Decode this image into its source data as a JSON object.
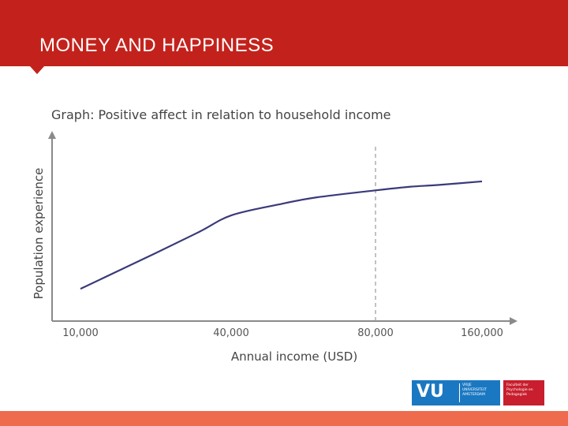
{
  "header": {
    "title": "MONEY AND HAPPINESS"
  },
  "chart_data": {
    "type": "line",
    "title": "Graph: Positive affect in relation to household income",
    "xlabel": "Annual income (USD)",
    "ylabel": "Population experience",
    "x_scale": "log",
    "x_ticks": [
      "10,000",
      "40,000",
      "80,000",
      "160,000"
    ],
    "x_tick_values": [
      10000,
      40000,
      80000,
      160000
    ],
    "xlim": [
      10000,
      200000
    ],
    "ylim": [
      0,
      1
    ],
    "series": [
      {
        "x": [
          10000,
          20000,
          30000,
          40000,
          50000,
          60000,
          80000,
          100000,
          120000,
          160000
        ],
        "values": [
          0.18,
          0.38,
          0.5,
          0.59,
          0.65,
          0.69,
          0.73,
          0.75,
          0.76,
          0.78
        ]
      }
    ],
    "reference_line_x": 80000,
    "colors": {
      "line": "#3a3a7a",
      "reference": "#9a9a9a",
      "axis": "#8a8a8a"
    },
    "grid": false
  },
  "logos": {
    "vu_mark": "VU",
    "vu_name": "VRIJE UNIVERSITEIT AMSTERDAM",
    "faculty_name": "Faculteit der Psychologie en Pedagogiek"
  }
}
